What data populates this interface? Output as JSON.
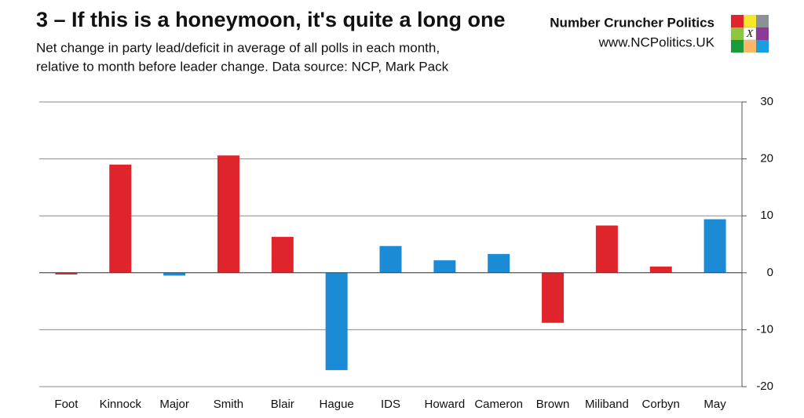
{
  "chart_data": {
    "type": "bar",
    "title": "3 – If this is a honeymoon, it's quite a long one",
    "subtitle": [
      "Net change in party lead/deficit in average of all polls in each month,",
      "relative to month before leader change. Data source: NCP, Mark Pack"
    ],
    "brand": "Number Cruncher Politics",
    "url": "www.NCPolitics.UK",
    "logo_text": "X",
    "categories": [
      "Foot",
      "Kinnock",
      "Major",
      "Smith",
      "Blair",
      "Hague",
      "IDS",
      "Howard",
      "Cameron",
      "Brown",
      "Miliband",
      "Corbyn",
      "May"
    ],
    "values": [
      -0.3,
      19.0,
      -0.5,
      20.6,
      6.3,
      -17.1,
      4.7,
      2.2,
      3.3,
      -8.8,
      8.3,
      1.1,
      9.4
    ],
    "colors": [
      "#e0242c",
      "#e0242c",
      "#1b8bd6",
      "#e0242c",
      "#e0242c",
      "#1b8bd6",
      "#1b8bd6",
      "#1b8bd6",
      "#1b8bd6",
      "#e0242c",
      "#e0242c",
      "#e0242c",
      "#1b8bd6"
    ],
    "ylim": [
      -20,
      30
    ],
    "yticks": [
      -20,
      -10,
      0,
      10,
      20,
      30
    ],
    "grid": true,
    "y_axis_side": "right"
  }
}
